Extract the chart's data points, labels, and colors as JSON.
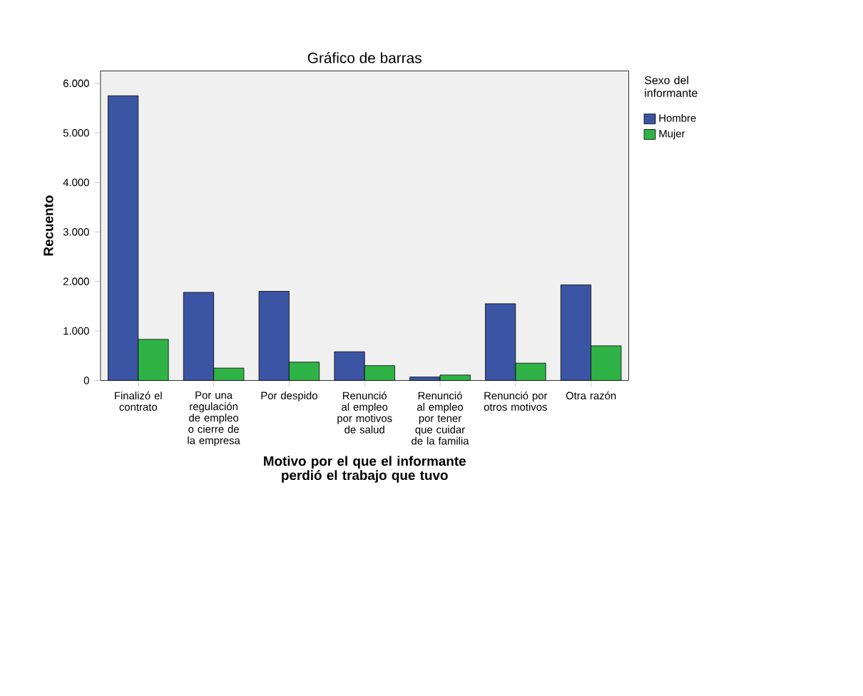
{
  "chart_data": {
    "type": "bar",
    "title": "Gráfico de barras",
    "xlabel": "Motivo por el que el informante perdió el trabajo que tuvo",
    "ylabel": "Recuento",
    "legend_title": "Sexo del informante",
    "legend": "top right",
    "categories": [
      "Finalizó el contrato",
      "Por una regulación de empleo o cierre de la empresa",
      "Por despido",
      "Renunció al empleo por motivos de salud",
      "Renunció al empleo por tener que cuidar de la familia",
      "Renunció por otros motivos",
      "Otra razón"
    ],
    "series": [
      {
        "name": "Hombre",
        "color": "#3b54a4",
        "values": [
          5750,
          1780,
          1800,
          580,
          70,
          1550,
          1930
        ]
      },
      {
        "name": "Mujer",
        "color": "#2fb347",
        "values": [
          830,
          250,
          370,
          300,
          110,
          350,
          700
        ]
      }
    ],
    "ylim": [
      0,
      6250
    ],
    "yticks": [
      {
        "value": 0,
        "label": "0"
      },
      {
        "value": 1000,
        "label": "1.000"
      },
      {
        "value": 2000,
        "label": "2.000"
      },
      {
        "value": 3000,
        "label": "3.000"
      },
      {
        "value": 4000,
        "label": "4.000"
      },
      {
        "value": 5000,
        "label": "5.000"
      },
      {
        "value": 6000,
        "label": "6.000"
      }
    ]
  }
}
